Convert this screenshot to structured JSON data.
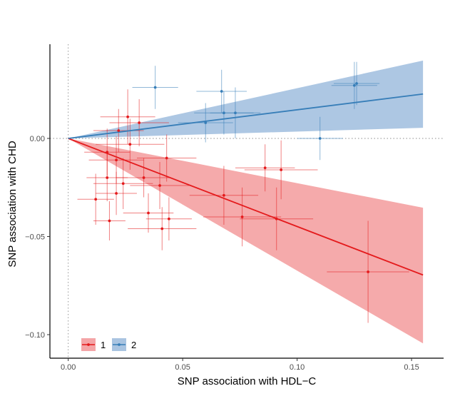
{
  "chart_data": {
    "type": "scatter",
    "xlabel": "SNP association with HDL−C",
    "ylabel": "SNP association with CHD",
    "xlim": [
      -0.008,
      0.164
    ],
    "ylim": [
      -0.112,
      0.048
    ],
    "x_ticks": [
      {
        "value": 0.0,
        "label": "0.00"
      },
      {
        "value": 0.05,
        "label": "0.05"
      },
      {
        "value": 0.1,
        "label": "0.10"
      },
      {
        "value": 0.15,
        "label": "0.15"
      }
    ],
    "y_ticks": [
      {
        "value": 0.0,
        "label": "0.00"
      },
      {
        "value": -0.05,
        "label": "−0.05"
      },
      {
        "value": -0.1,
        "label": "−0.10"
      }
    ],
    "reference_lines": {
      "x": 0,
      "y": 0,
      "style": "dotted"
    },
    "legend": {
      "position": "bottom-left",
      "entries": [
        "1",
        "2"
      ]
    },
    "series": [
      {
        "name": "1",
        "color": "#e41a1c",
        "band_color": "#f4a5a7",
        "slope": -0.449,
        "band_slopes": [
          -0.228,
          -0.674
        ],
        "line_range": [
          0,
          0.155
        ],
        "points": [
          {
            "x": 0.012,
            "y": -0.031,
            "xerr": 0.008,
            "yerr": 0.013
          },
          {
            "x": 0.017,
            "y": -0.007,
            "xerr": 0.01,
            "yerr": 0.012
          },
          {
            "x": 0.017,
            "y": -0.02,
            "xerr": 0.009,
            "yerr": 0.012
          },
          {
            "x": 0.018,
            "y": -0.042,
            "xerr": 0.007,
            "yerr": 0.01
          },
          {
            "x": 0.021,
            "y": -0.011,
            "xerr": 0.012,
            "yerr": 0.012
          },
          {
            "x": 0.021,
            "y": -0.028,
            "xerr": 0.009,
            "yerr": 0.011
          },
          {
            "x": 0.022,
            "y": 0.004,
            "xerr": 0.011,
            "yerr": 0.011
          },
          {
            "x": 0.024,
            "y": -0.023,
            "xerr": 0.013,
            "yerr": 0.013
          },
          {
            "x": 0.026,
            "y": 0.011,
            "xerr": 0.012,
            "yerr": 0.014
          },
          {
            "x": 0.027,
            "y": -0.003,
            "xerr": 0.015,
            "yerr": 0.013
          },
          {
            "x": 0.031,
            "y": 0.008,
            "xerr": 0.013,
            "yerr": 0.012
          },
          {
            "x": 0.033,
            "y": -0.02,
            "xerr": 0.012,
            "yerr": 0.01
          },
          {
            "x": 0.035,
            "y": -0.038,
            "xerr": 0.011,
            "yerr": 0.01
          },
          {
            "x": 0.04,
            "y": -0.024,
            "xerr": 0.013,
            "yerr": 0.012
          },
          {
            "x": 0.041,
            "y": -0.046,
            "xerr": 0.015,
            "yerr": 0.011
          },
          {
            "x": 0.043,
            "y": -0.01,
            "xerr": 0.013,
            "yerr": 0.012
          },
          {
            "x": 0.044,
            "y": -0.041,
            "xerr": 0.01,
            "yerr": 0.011
          },
          {
            "x": 0.068,
            "y": -0.029,
            "xerr": 0.015,
            "yerr": 0.015
          },
          {
            "x": 0.076,
            "y": -0.04,
            "xerr": 0.017,
            "yerr": 0.015
          },
          {
            "x": 0.086,
            "y": -0.015,
            "xerr": 0.013,
            "yerr": 0.012
          },
          {
            "x": 0.091,
            "y": -0.041,
            "xerr": 0.016,
            "yerr": 0.016
          },
          {
            "x": 0.093,
            "y": -0.016,
            "xerr": 0.016,
            "yerr": 0.015
          },
          {
            "x": 0.131,
            "y": -0.068,
            "xerr": 0.018,
            "yerr": 0.026
          }
        ]
      },
      {
        "name": "2",
        "color": "#377eb8",
        "band_color": "#a9c4e1",
        "slope": 0.146,
        "band_slopes": [
          0.035,
          0.256
        ],
        "line_range": [
          0,
          0.155
        ],
        "points": [
          {
            "x": 0.038,
            "y": 0.026,
            "xerr": 0.01,
            "yerr": 0.011
          },
          {
            "x": 0.06,
            "y": 0.008,
            "xerr": 0.012,
            "yerr": 0.01
          },
          {
            "x": 0.067,
            "y": 0.024,
            "xerr": 0.011,
            "yerr": 0.011
          },
          {
            "x": 0.068,
            "y": 0.013,
            "xerr": 0.013,
            "yerr": 0.011
          },
          {
            "x": 0.073,
            "y": 0.013,
            "xerr": 0.011,
            "yerr": 0.013
          },
          {
            "x": 0.11,
            "y": 0.0,
            "xerr": 0.01,
            "yerr": 0.011
          },
          {
            "x": 0.125,
            "y": 0.027,
            "xerr": 0.01,
            "yerr": 0.012
          },
          {
            "x": 0.126,
            "y": 0.028,
            "xerr": 0.01,
            "yerr": 0.011
          }
        ]
      }
    ]
  }
}
